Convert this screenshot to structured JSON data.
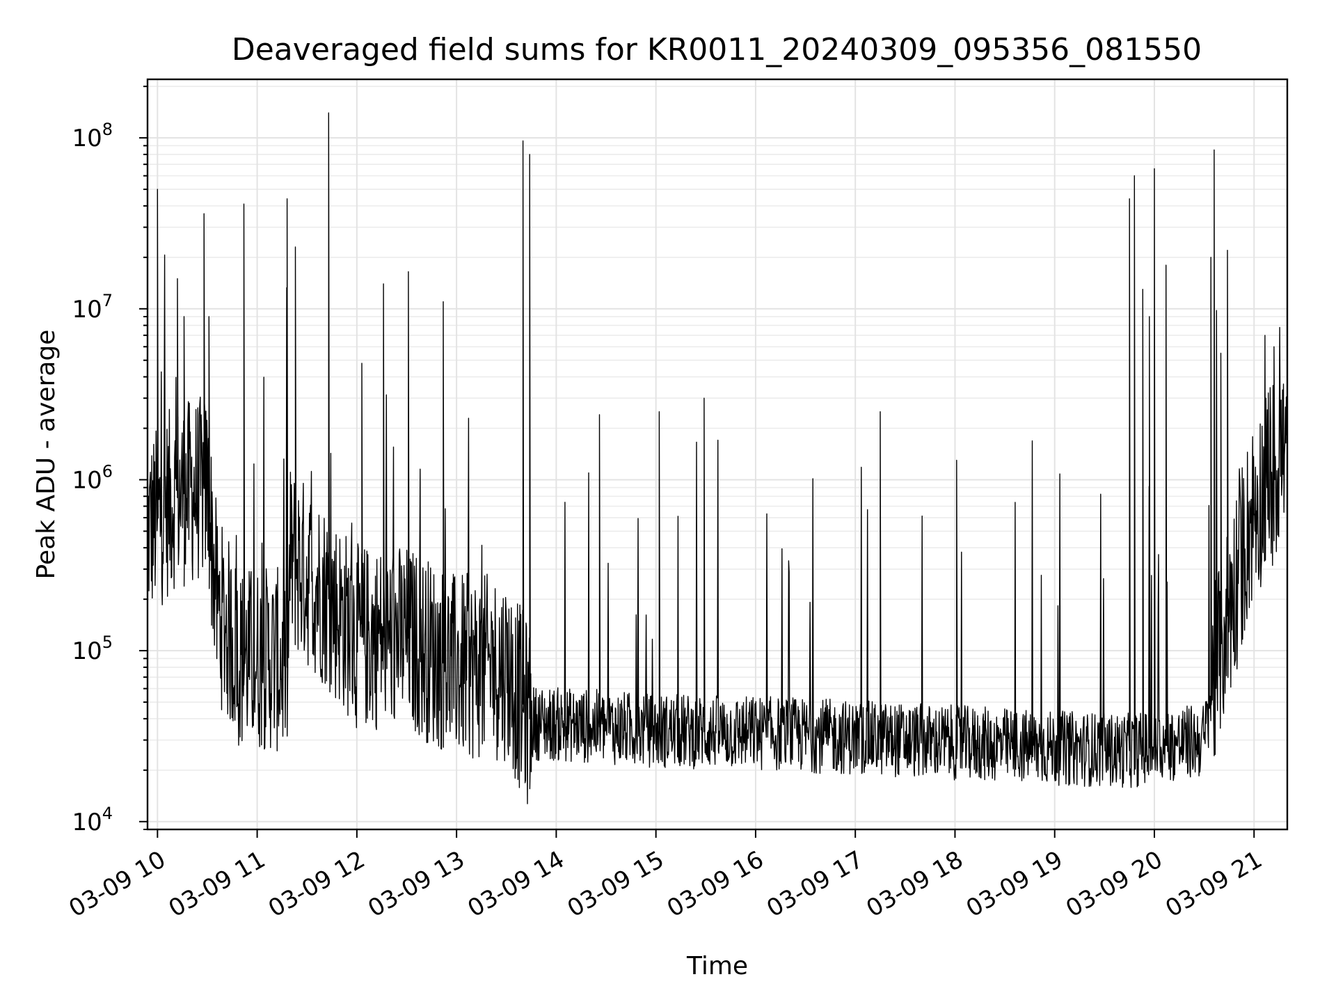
{
  "chart_data": {
    "type": "line",
    "title": "Deaveraged field sums for KR0011_20240309_095356_081550",
    "xlabel": "Time",
    "ylabel": "Peak ADU - average",
    "yscale": "log",
    "ylim": [
      9000,
      220000000
    ],
    "xlim": [
      "2024-03-09 09:54",
      "2024-03-09 21:20"
    ],
    "grid": true,
    "x_ticks": [
      {
        "t": "2024-03-09 10:00",
        "label": "03-09 10"
      },
      {
        "t": "2024-03-09 11:00",
        "label": "03-09 11"
      },
      {
        "t": "2024-03-09 12:00",
        "label": "03-09 12"
      },
      {
        "t": "2024-03-09 13:00",
        "label": "03-09 13"
      },
      {
        "t": "2024-03-09 14:00",
        "label": "03-09 14"
      },
      {
        "t": "2024-03-09 15:00",
        "label": "03-09 15"
      },
      {
        "t": "2024-03-09 16:00",
        "label": "03-09 16"
      },
      {
        "t": "2024-03-09 17:00",
        "label": "03-09 17"
      },
      {
        "t": "2024-03-09 18:00",
        "label": "03-09 18"
      },
      {
        "t": "2024-03-09 19:00",
        "label": "03-09 19"
      },
      {
        "t": "2024-03-09 20:00",
        "label": "03-09 20"
      },
      {
        "t": "2024-03-09 21:00",
        "label": "03-09 21"
      }
    ],
    "y_ticks": [
      {
        "value": 10000,
        "base": "10",
        "exp": "4"
      },
      {
        "value": 100000,
        "base": "10",
        "exp": "5"
      },
      {
        "value": 1000000,
        "base": "10",
        "exp": "6"
      },
      {
        "value": 10000000,
        "base": "10",
        "exp": "7"
      },
      {
        "value": 100000000,
        "base": "10",
        "exp": "8"
      }
    ],
    "baseline": [
      [
        "2024-03-09 09:54",
        500000
      ],
      [
        "2024-03-09 10:10",
        800000
      ],
      [
        "2024-03-09 10:30",
        900000
      ],
      [
        "2024-03-09 10:36",
        180000
      ],
      [
        "2024-03-09 10:50",
        90000
      ],
      [
        "2024-03-09 11:10",
        90000
      ],
      [
        "2024-03-09 11:18",
        80000
      ],
      [
        "2024-03-09 11:20",
        350000
      ],
      [
        "2024-03-09 11:40",
        220000
      ],
      [
        "2024-03-09 12:00",
        120000
      ],
      [
        "2024-03-09 12:30",
        120000
      ],
      [
        "2024-03-09 13:00",
        80000
      ],
      [
        "2024-03-09 13:30",
        80000
      ],
      [
        "2024-03-09 13:45",
        38000
      ],
      [
        "2024-03-09 15:00",
        34000
      ],
      [
        "2024-03-09 16:00",
        33000
      ],
      [
        "2024-03-09 17:00",
        31000
      ],
      [
        "2024-03-09 18:00",
        29000
      ],
      [
        "2024-03-09 19:00",
        27000
      ],
      [
        "2024-03-09 19:45",
        26000
      ],
      [
        "2024-03-09 20:30",
        30000
      ],
      [
        "2024-03-09 20:40",
        110000
      ],
      [
        "2024-03-09 20:50",
        280000
      ],
      [
        "2024-03-09 21:00",
        700000
      ],
      [
        "2024-03-09 21:20",
        1600000
      ]
    ],
    "spikes": [
      [
        "2024-03-09 10:00",
        50000000
      ],
      [
        "2024-03-09 10:12",
        15000000
      ],
      [
        "2024-03-09 10:16",
        9000000
      ],
      [
        "2024-03-09 10:28",
        36000000
      ],
      [
        "2024-03-09 10:31",
        9000000
      ],
      [
        "2024-03-09 10:52",
        41000000
      ],
      [
        "2024-03-09 11:18",
        44000000
      ],
      [
        "2024-03-09 11:23",
        23000000
      ],
      [
        "2024-03-09 11:43",
        140000000
      ],
      [
        "2024-03-09 12:03",
        4800000
      ],
      [
        "2024-03-09 12:16",
        14000000
      ],
      [
        "2024-03-09 12:31",
        16500000
      ],
      [
        "2024-03-09 12:52",
        11000000
      ],
      [
        "2024-03-09 13:40",
        96000000
      ],
      [
        "2024-03-09 13:44",
        80000000
      ],
      [
        "2024-03-09 14:26",
        2400000
      ],
      [
        "2024-03-09 15:02",
        2500000
      ],
      [
        "2024-03-09 15:29",
        3000000
      ],
      [
        "2024-03-09 17:15",
        2500000
      ],
      [
        "2024-03-09 18:01",
        1300000
      ],
      [
        "2024-03-09 19:45",
        44000000
      ],
      [
        "2024-03-09 19:48",
        60000000
      ],
      [
        "2024-03-09 19:53",
        13000000
      ],
      [
        "2024-03-09 19:57",
        9000000
      ],
      [
        "2024-03-09 20:00",
        66000000
      ],
      [
        "2024-03-09 20:07",
        18000000
      ],
      [
        "2024-03-09 20:36",
        85000000
      ],
      [
        "2024-03-09 20:34",
        20000000
      ],
      [
        "2024-03-09 20:40",
        5500000
      ],
      [
        "2024-03-09 20:44",
        22000000
      ],
      [
        "2024-03-09 21:12",
        6000000
      ]
    ]
  }
}
